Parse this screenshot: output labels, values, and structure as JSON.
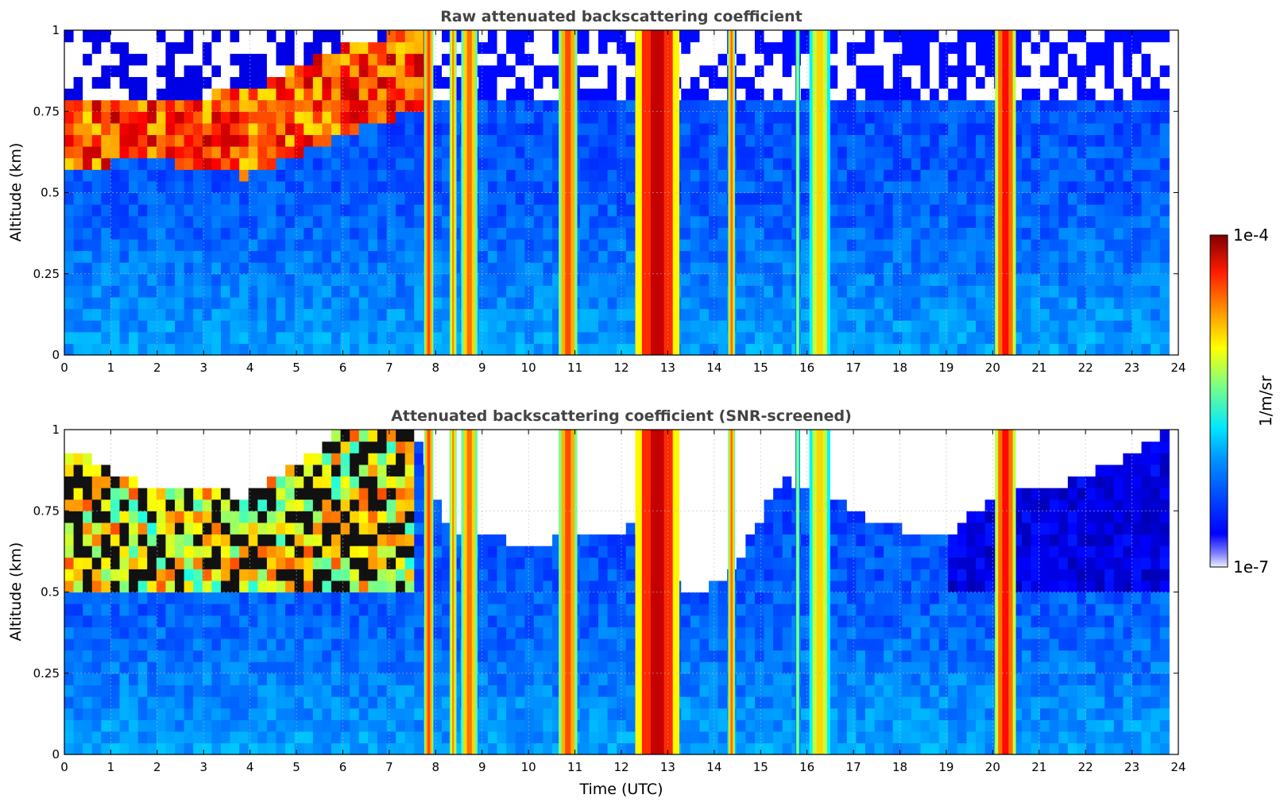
{
  "chart_data": [
    {
      "type": "heatmap",
      "title": "Raw attenuated backscattering coefficient",
      "xlabel": "",
      "ylabel": "Altitude (km)",
      "xlim": [
        0,
        24
      ],
      "ylim": [
        0,
        1
      ],
      "xticks": [
        0,
        1,
        2,
        3,
        4,
        5,
        6,
        7,
        8,
        9,
        10,
        11,
        12,
        13,
        14,
        15,
        16,
        17,
        18,
        19,
        20,
        21,
        22,
        23,
        24
      ],
      "yticks": [
        0,
        0.25,
        0.5,
        0.75,
        1
      ],
      "ytick_labels": [
        "0",
        "0.25",
        "0.5",
        "0.75",
        "1"
      ],
      "grid": true,
      "data_time_range_utc": [
        0,
        23.8
      ],
      "background_log10": -6.35,
      "cloud_layer": [
        {
          "t": 0,
          "base_km": 0.58,
          "top_km": 0.78
        },
        {
          "t": 2,
          "base_km": 0.6,
          "top_km": 0.78
        },
        {
          "t": 4,
          "base_km": 0.55,
          "top_km": 0.82
        },
        {
          "t": 6,
          "base_km": 0.68,
          "top_km": 0.95
        },
        {
          "t": 7.5,
          "base_km": 0.75,
          "top_km": 1.0
        }
      ],
      "precipitation_bands_utc": [
        {
          "start": 7.75,
          "end": 7.95,
          "log10": -4.6
        },
        {
          "start": 8.3,
          "end": 8.45,
          "log10": -4.8
        },
        {
          "start": 8.55,
          "end": 8.9,
          "log10": -4.7
        },
        {
          "start": 10.65,
          "end": 11.05,
          "log10": -4.6
        },
        {
          "start": 12.3,
          "end": 13.25,
          "log10": -4.2
        },
        {
          "start": 14.3,
          "end": 14.45,
          "log10": -4.7
        },
        {
          "start": 15.75,
          "end": 15.85,
          "log10": -5.4
        },
        {
          "start": 16.05,
          "end": 16.5,
          "log10": -5.0
        },
        {
          "start": 20.05,
          "end": 20.5,
          "log10": -4.4
        }
      ]
    },
    {
      "type": "heatmap",
      "title": "Attenuated backscattering coefficient (SNR-screened)",
      "xlabel": "Time (UTC)",
      "ylabel": "Altitude (km)",
      "xlim": [
        0,
        24
      ],
      "ylim": [
        0,
        1
      ],
      "xticks": [
        0,
        1,
        2,
        3,
        4,
        5,
        6,
        7,
        8,
        9,
        10,
        11,
        12,
        13,
        14,
        15,
        16,
        17,
        18,
        19,
        20,
        21,
        22,
        23,
        24
      ],
      "yticks": [
        0,
        0.25,
        0.5,
        0.75,
        1
      ],
      "ytick_labels": [
        "0",
        "0.25",
        "0.5",
        "0.75",
        "1"
      ],
      "grid": true,
      "data_time_range_utc": [
        0,
        23.8
      ],
      "background_log10": -6.35,
      "screen_top_km": [
        {
          "t": 0,
          "km": 0.95
        },
        {
          "t": 1.8,
          "km": 0.82
        },
        {
          "t": 4,
          "km": 0.8
        },
        {
          "t": 6,
          "km": 1.0
        },
        {
          "t": 7.6,
          "km": 1.0
        },
        {
          "t": 8.2,
          "km": 0.7
        },
        {
          "t": 10,
          "km": 0.65
        },
        {
          "t": 12.2,
          "km": 0.7
        },
        {
          "t": 13.5,
          "km": 0.48
        },
        {
          "t": 14.3,
          "km": 0.55
        },
        {
          "t": 15.5,
          "km": 0.85
        },
        {
          "t": 17.5,
          "km": 0.72
        },
        {
          "t": 19,
          "km": 0.66
        },
        {
          "t": 20,
          "km": 0.8
        },
        {
          "t": 22,
          "km": 0.85
        },
        {
          "t": 23.8,
          "km": 1.0
        }
      ],
      "precipitation_bands_utc": [
        {
          "start": 7.75,
          "end": 7.95,
          "log10": -4.6
        },
        {
          "start": 8.3,
          "end": 8.45,
          "log10": -4.8
        },
        {
          "start": 8.55,
          "end": 8.9,
          "log10": -4.7
        },
        {
          "start": 10.65,
          "end": 11.05,
          "log10": -4.6
        },
        {
          "start": 12.3,
          "end": 13.25,
          "log10": -4.2
        },
        {
          "start": 14.3,
          "end": 14.45,
          "log10": -4.7
        },
        {
          "start": 15.75,
          "end": 15.85,
          "log10": -5.4
        },
        {
          "start": 16.05,
          "end": 16.5,
          "log10": -5.0
        },
        {
          "start": 20.05,
          "end": 20.5,
          "log10": -4.4
        }
      ]
    }
  ],
  "colorbar": {
    "label": "1/m/sr",
    "max_label": "1e-4",
    "min_label": "1e-7",
    "colormap": "jet",
    "scale": "log",
    "range": [
      1e-07,
      0.0001
    ]
  }
}
